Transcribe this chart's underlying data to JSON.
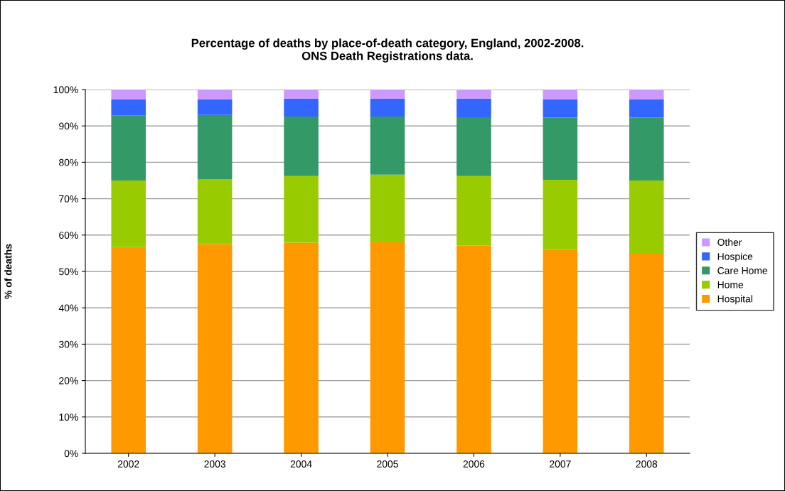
{
  "chart_data": {
    "type": "bar",
    "stacked": true,
    "title": "Percentage of deaths by place-of-death category, England, 2002-2008.\nONS Death Registrations data.",
    "ylabel": "% of deaths",
    "categories": [
      "2002",
      "2003",
      "2004",
      "2005",
      "2006",
      "2007",
      "2008"
    ],
    "series": [
      {
        "name": "Hospital",
        "color": "#ff9900",
        "values": [
          56.7,
          57.5,
          57.9,
          58.0,
          57.2,
          55.9,
          55.1
        ]
      },
      {
        "name": "Home",
        "color": "#99cc00",
        "values": [
          18.3,
          17.9,
          18.3,
          18.6,
          19.0,
          19.3,
          19.9
        ]
      },
      {
        "name": "Care Home",
        "color": "#339966",
        "values": [
          17.8,
          17.6,
          16.4,
          16.0,
          16.2,
          17.1,
          17.3
        ]
      },
      {
        "name": "Hospice",
        "color": "#3366ff",
        "values": [
          4.5,
          4.3,
          4.9,
          4.9,
          5.1,
          5.0,
          5.0
        ]
      },
      {
        "name": "Other",
        "color": "#cc99ff",
        "values": [
          2.7,
          2.7,
          2.5,
          2.5,
          2.5,
          2.7,
          2.7
        ]
      }
    ],
    "ylim": [
      0,
      100
    ],
    "yticks": [
      {
        "value": 0,
        "label": "0%"
      },
      {
        "value": 10,
        "label": "10%"
      },
      {
        "value": 20,
        "label": "20%"
      },
      {
        "value": 30,
        "label": "30%"
      },
      {
        "value": 40,
        "label": "40%"
      },
      {
        "value": 50,
        "label": "50%"
      },
      {
        "value": 60,
        "label": "60%"
      },
      {
        "value": 70,
        "label": "70%"
      },
      {
        "value": 80,
        "label": "80%"
      },
      {
        "value": 90,
        "label": "90%"
      },
      {
        "value": 100,
        "label": "100%"
      }
    ],
    "grid": "y",
    "legend": "right"
  }
}
